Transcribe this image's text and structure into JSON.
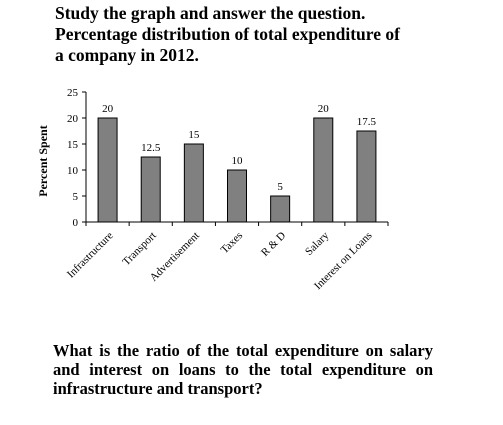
{
  "intro": {
    "line1": "Study the graph and answer the question.",
    "line2": "Percentage distribution of total expenditure of",
    "line3": "a company in 2012."
  },
  "question": "What is the ratio of the total expenditure on salary and interest on loans to the total expenditure on infrastructure and transport?",
  "chart_data": {
    "type": "bar",
    "categories": [
      "Infrastructure",
      "Transport",
      "Advertisement",
      "Taxes",
      "R & D",
      "Salary",
      "Interest on Loans"
    ],
    "values": [
      20,
      12.5,
      15,
      10,
      5,
      20,
      17.5
    ],
    "value_labels": [
      "20",
      "12.5",
      "15",
      "10",
      "5",
      "20",
      "17.5"
    ],
    "ylabel": "Percent Spent",
    "xlabel": "",
    "ylim": [
      0,
      25
    ],
    "yticks": [
      0,
      5,
      10,
      15,
      20,
      25
    ],
    "grid": false,
    "legend": "none",
    "bar_color": "#808080"
  }
}
